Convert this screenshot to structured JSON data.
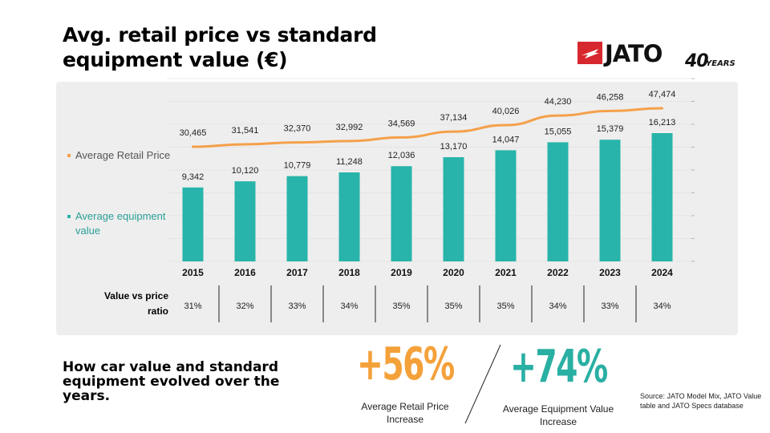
{
  "title": "Avg. retail price vs standard equipment value (€)",
  "logo": {
    "brand": "JATO",
    "years_number": "40",
    "years_word": "YEARS",
    "brand_color": "#d7282f"
  },
  "legend": {
    "price_label": "Average Retail Price",
    "equipment_label": "Average equipment value"
  },
  "colors": {
    "price_line": "#f5a04a",
    "equipment_bar": "#28b4aa",
    "panel_bg": "#eeeeee",
    "big_price": "#f4a13a",
    "big_equipment": "#2aafa3"
  },
  "chart_data": {
    "type": "bar",
    "categories": [
      "2015",
      "2016",
      "2017",
      "2018",
      "2019",
      "2020",
      "2021",
      "2022",
      "2023",
      "2024"
    ],
    "series": [
      {
        "name": "Average equipment value",
        "type": "bar",
        "values": [
          9342,
          10120,
          10779,
          11248,
          12036,
          13170,
          14047,
          15055,
          15379,
          16213
        ],
        "labels": [
          "9,342",
          "10,120",
          "10,779",
          "11,248",
          "12,036",
          "13,170",
          "14,047",
          "15,055",
          "15,379",
          "16,213"
        ]
      },
      {
        "name": "Average Retail Price",
        "type": "line",
        "values": [
          30465,
          31541,
          32370,
          32992,
          34569,
          37134,
          40026,
          44230,
          46258,
          47474
        ],
        "labels": [
          "30,465",
          "31,541",
          "32,370",
          "32,992",
          "34,569",
          "37,134",
          "40,026",
          "44,230",
          "46,258",
          "47,474"
        ]
      }
    ],
    "ratio": {
      "label": "Value vs price ratio",
      "values": [
        "31%",
        "32%",
        "33%",
        "34%",
        "35%",
        "35%",
        "35%",
        "34%",
        "33%",
        "34%"
      ]
    },
    "legend_position": "left",
    "grid": true
  },
  "bottom": {
    "headline": "How car value and standard equipment evolved over the years.",
    "price_increase": "+56%",
    "price_increase_label": "Average Retail Price Increase",
    "equipment_increase": "+74%",
    "equipment_increase_label": "Average Equipment Value Increase",
    "source": "Source: JATO Model Mix, JATO Value table and JATO Specs database"
  }
}
